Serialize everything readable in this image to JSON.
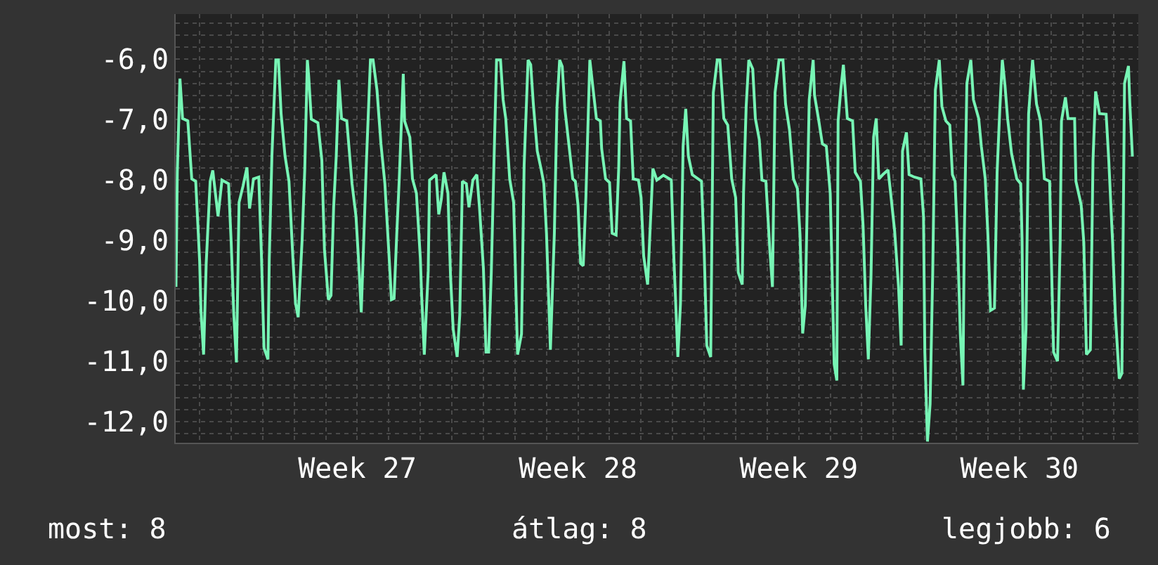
{
  "chart_data": {
    "type": "line",
    "x": [
      "--06-30T06:00",
      "--06-30T07:00",
      "--06-30T09:00",
      "--06-30T11:00",
      "--06-30T15:00",
      "--06-30T18:00",
      "--06-30T21:00",
      "--07-01T00:00",
      "--07-01T01:00",
      "--07-01T03:00",
      "--07-01T05:00",
      "--07-01T08:00",
      "--07-01T10:00",
      "--07-01T14:00",
      "--07-01T17:00",
      "--07-01T22:00",
      "--07-02T00:00",
      "--07-02T02:00",
      "--07-02T04:00",
      "--07-02T06:00",
      "--07-02T09:00",
      "--07-02T12:00",
      "--07-02T14:00",
      "--07-02T17:00",
      "--07-02T21:00",
      "--07-02T23:00",
      "--07-03T01:00",
      "--07-03T04:00",
      "--07-03T05:00",
      "--07-03T07:00",
      "--07-03T10:00",
      "--07-03T12:00",
      "--07-03T14:00",
      "--07-03T17:00",
      "--07-03T20:00",
      "--07-03T23:00",
      "--07-04T01:00",
      "--07-04T03:00",
      "--07-04T06:00",
      "--07-04T08:00",
      "--07-04T10:00",
      "--07-04T11:00",
      "--07-04T13:00",
      "--07-04T18:00",
      "--07-04T21:00",
      "--07-04T23:00",
      "--07-05T02:00",
      "--07-05T04:00",
      "--07-05T06:00",
      "--07-05T08:00",
      "--07-05T10:00",
      "--07-05T12:00",
      "--07-05T16:00",
      "--07-05T20:00",
      "--07-05T23:00",
      "--07-06T01:00",
      "--07-06T03:00",
      "--07-06T07:00",
      "--07-06T10:00",
      "--07-06T12:00",
      "--07-06T15:00",
      "--07-06T18:00",
      "--07-06T21:00",
      "--07-07T00:00",
      "--07-07T02:00",
      "--07-07T04:00",
      "--07-07T06:00",
      "--07-07T08:00",
      "--07-07T11:00",
      "--07-07T12:00",
      "--07-07T16:00",
      "--07-07T18:00",
      "--07-07T21:00",
      "--07-08T00:00",
      "--07-08T01:00",
      "--07-08T03:00",
      "--07-08T06:00",
      "--07-08T07:00",
      "--07-08T12:00",
      "--07-08T14:00",
      "--07-08T16:00",
      "--07-08T18:00",
      "--07-08T21:00",
      "--07-08T23:00",
      "--07-09T01:00",
      "--07-09T04:00",
      "--07-09T06:00",
      "--07-09T08:00",
      "--07-09T11:00",
      "--07-09T13:00",
      "--07-09T16:00",
      "--07-09T19:00",
      "--07-09T21:00",
      "--07-10T00:00",
      "--07-10T02:00",
      "--07-10T04:00",
      "--07-10T06:00",
      "--07-10T08:00",
      "--07-10T10:00",
      "--07-10T13:00",
      "--07-10T15:00",
      "--07-10T17:00",
      "--07-10T20:00",
      "--07-10T23:00",
      "--07-11T00:00",
      "--07-11T02:00",
      "--07-11T05:00",
      "--07-11T07:00",
      "--07-11T10:00",
      "--07-11T12:00",
      "--07-11T14:00",
      "--07-11T17:00",
      "--07-11T20:00",
      "--07-11T22:00",
      "--07-12T00:00",
      "--07-12T03:00",
      "--07-12T06:00",
      "--07-12T08:00",
      "--07-12T10:00",
      "--07-12T12:00",
      "--07-12T14:00",
      "--07-12T17:00",
      "--07-12T20:00",
      "--07-12T22:00",
      "--07-13T00:00",
      "--07-13T02:00",
      "--07-13T04:00",
      "--07-13T06:00",
      "--07-13T09:00",
      "--07-13T11:00",
      "--07-13T14:00",
      "--07-13T17:00",
      "--07-13T18:00",
      "--07-13T21:00",
      "--07-14T00:00",
      "--07-14T02:00",
      "--07-14T05:00",
      "--07-14T07:00",
      "--07-14T08:00",
      "--07-14T11:00",
      "--07-14T13:00",
      "--07-14T16:00",
      "--07-14T18:00",
      "--07-14T22:00",
      "--07-15T00:00",
      "--07-15T02:00",
      "--07-15T05:00",
      "--07-15T07:00",
      "--07-15T09:00",
      "--07-15T12:00",
      "--07-15T17:00",
      "--07-15T23:00",
      "--07-16T01:00",
      "--07-16T04:00",
      "--07-16T06:00",
      "--07-16T08:00",
      "--07-16T10:00",
      "--07-16T12:00",
      "--07-16T15:00",
      "--07-16T22:00",
      "--07-17T00:00",
      "--07-17T02:00",
      "--07-17T05:00",
      "--07-17T07:00",
      "--07-17T10:00",
      "--07-17T12:00",
      "--07-17T15:00",
      "--07-17T18:00",
      "--07-17T21:00",
      "--07-18T00:00",
      "--07-18T02:00",
      "--07-18T05:00",
      "--07-18T06:00",
      "--07-18T08:00",
      "--07-18T10:00",
      "--07-18T13:00",
      "--07-18T15:00",
      "--07-18T18:00",
      "--07-18T20:00",
      "--07-18T23:00",
      "--07-19T02:00",
      "--07-19T04:00",
      "--07-19T06:00",
      "--07-19T09:00",
      "--07-19T12:00",
      "--07-19T14:00",
      "--07-19T17:00",
      "--07-19T20:00",
      "--07-19T23:00",
      "--07-20T01:00",
      "--07-20T03:00",
      "--07-20T05:00",
      "--07-20T08:00",
      "--07-20T11:00",
      "--07-20T12:00",
      "--07-20T15:00",
      "--07-20T18:00",
      "--07-20T21:00",
      "--07-21T00:00",
      "--07-21T03:00",
      "--07-21T05:00",
      "--07-21T06:00",
      "--07-21T08:00",
      "--07-21T10:00",
      "--07-21T13:00",
      "--07-21T17:00",
      "--07-21T19:00",
      "--07-21T23:00",
      "--07-22T01:00",
      "--07-22T03:00",
      "--07-22T05:00",
      "--07-22T07:00",
      "--07-22T09:00",
      "--07-22T11:00",
      "--07-22T13:00",
      "--07-22T16:00",
      "--07-22T20:00",
      "--07-22T22:00",
      "--07-23T01:00",
      "--07-23T04:00",
      "--07-23T06:00",
      "--07-23T07:00",
      "--07-23T10:00",
      "--07-23T12:00",
      "--07-23T16:00",
      "--07-23T21:00",
      "--07-23T23:00",
      "--07-24T00:00",
      "--07-24T02:00",
      "--07-24T04:00",
      "--07-24T06:00",
      "--07-24T08:00",
      "--07-24T11:00",
      "--07-24T13:00",
      "--07-24T16:00",
      "--07-24T19:00",
      "--07-24T21:00",
      "--07-24T23:00",
      "--07-25T01:00",
      "--07-25T03:00",
      "--07-25T05:00",
      "--07-25T06:00",
      "--07-25T08:00",
      "--07-25T11:00",
      "--07-25T13:00",
      "--07-25T17:00",
      "--07-25T19:00",
      "--07-25T22:00",
      "--07-26T00:00",
      "--07-26T02:00",
      "--07-26T05:00",
      "--07-26T07:00",
      "--07-26T09:00",
      "--07-26T11:00",
      "--07-26T13:00",
      "--07-26T15:00",
      "--07-26T18:00",
      "--07-26T22:00",
      "--07-27T01:00",
      "--07-27T02:00",
      "--07-27T03:00",
      "--07-27T05:00",
      "--07-27T07:00",
      "--07-27T10:00",
      "--07-27T13:00",
      "--07-27T16:00",
      "--07-27T19:00",
      "--07-27T23:00",
      "--07-28T00:00",
      "--07-28T02:00",
      "--07-28T05:00",
      "--07-28T07:00",
      "--07-28T08:00",
      "--07-28T11:00",
      "--07-28T13:00",
      "--07-28T18:00",
      "--07-28T19:00",
      "--07-28T23:00",
      "--07-29T01:00",
      "--07-29T03:00",
      "--07-29T06:00",
      "--07-29T08:00",
      "--07-29T10:00",
      "--07-29T13:00",
      "--07-29T18:00",
      "--07-29T20:00",
      "--07-29T23:00",
      "--07-30T01:00",
      "--07-30T04:00",
      "--07-30T06:00",
      "--07-30T08:00",
      "--07-30T11:00",
      "--07-30T12:00",
      "--07-30T14:00"
    ],
    "series": [
      {
        "color": "#77f5b5",
        "values": [
          -9.77,
          -7.87,
          -6.32,
          -6.98,
          -7.02,
          -7.98,
          -8.02,
          -9.34,
          -10.16,
          -10.89,
          -9.38,
          -8.02,
          -7.84,
          -8.6,
          -8.0,
          -8.06,
          -9.03,
          -10.23,
          -11.02,
          -8.37,
          -8.1,
          -7.79,
          -8.47,
          -7.98,
          -7.95,
          -9.22,
          -10.78,
          -10.97,
          -9.3,
          -7.6,
          -6.01,
          -6.01,
          -6.9,
          -7.6,
          -8.02,
          -9.3,
          -10.04,
          -10.27,
          -8.99,
          -7.83,
          -6.01,
          -6.28,
          -6.99,
          -7.05,
          -7.67,
          -9.15,
          -9.98,
          -9.91,
          -8.45,
          -7.6,
          -6.34,
          -6.98,
          -7.02,
          -8.06,
          -8.6,
          -9.34,
          -10.19,
          -7.67,
          -6.01,
          -6.01,
          -6.51,
          -7.4,
          -8.06,
          -9.19,
          -9.98,
          -9.96,
          -8.91,
          -7.95,
          -6.24,
          -7.02,
          -7.29,
          -7.98,
          -8.22,
          -9.3,
          -9.92,
          -10.89,
          -9.5,
          -8.0,
          -7.91,
          -8.57,
          -8.31,
          -7.87,
          -8.22,
          -9.61,
          -10.47,
          -10.93,
          -10.23,
          -8.02,
          -8.06,
          -8.45,
          -8.0,
          -7.91,
          -8.45,
          -9.46,
          -10.85,
          -10.85,
          -9.53,
          -7.75,
          -6.01,
          -6.01,
          -6.67,
          -6.98,
          -7.98,
          -8.37,
          -9.19,
          -10.89,
          -10.55,
          -7.75,
          -6.01,
          -6.09,
          -6.74,
          -7.52,
          -7.83,
          -8.06,
          -8.88,
          -10.81,
          -8.88,
          -6.78,
          -6.01,
          -6.12,
          -6.82,
          -7.4,
          -7.98,
          -8.02,
          -8.41,
          -9.38,
          -9.42,
          -8.29,
          -6.01,
          -6.4,
          -6.98,
          -7.02,
          -7.48,
          -7.98,
          -8.04,
          -8.88,
          -8.91,
          -7.79,
          -6.71,
          -6.03,
          -6.98,
          -7.02,
          -7.98,
          -8.0,
          -8.29,
          -9.26,
          -9.73,
          -8.76,
          -7.81,
          -8.0,
          -7.92,
          -8.0,
          -9.3,
          -10.93,
          -10.04,
          -7.44,
          -6.82,
          -7.6,
          -7.91,
          -8.02,
          -9.15,
          -10.74,
          -10.93,
          -6.55,
          -6.01,
          -6.01,
          -6.98,
          -7.09,
          -7.98,
          -8.29,
          -9.53,
          -9.73,
          -8.22,
          -6.78,
          -6.01,
          -6.16,
          -6.98,
          -7.33,
          -8.0,
          -8.02,
          -9.15,
          -9.77,
          -6.55,
          -6.01,
          -6.01,
          -6.74,
          -7.17,
          -7.98,
          -8.14,
          -8.91,
          -10.54,
          -10.08,
          -6.67,
          -6.01,
          -6.59,
          -6.98,
          -7.4,
          -7.44,
          -8.22,
          -11.05,
          -11.32,
          -7.02,
          -6.51,
          -6.09,
          -6.98,
          -7.02,
          -7.87,
          -8.02,
          -8.76,
          -10.08,
          -10.97,
          -9.61,
          -7.29,
          -6.98,
          -7.98,
          -7.91,
          -7.83,
          -8.22,
          -8.84,
          -9.77,
          -10.74,
          -7.52,
          -7.21,
          -7.91,
          -7.95,
          -7.98,
          -8.6,
          -10.85,
          -12.33,
          -11.71,
          -9.53,
          -6.51,
          -6.01,
          -6.78,
          -7.02,
          -7.09,
          -7.91,
          -8.02,
          -9.07,
          -10.54,
          -11.4,
          -8.99,
          -6.4,
          -6.01,
          -6.67,
          -6.98,
          -7.44,
          -7.98,
          -8.91,
          -10.16,
          -10.12,
          -7.87,
          -6.86,
          -6.01,
          -6.43,
          -6.98,
          -7.56,
          -7.98,
          -8.06,
          -8.99,
          -11.47,
          -10.47,
          -6.9,
          -6.01,
          -6.74,
          -7.02,
          -7.98,
          -8.02,
          -9.03,
          -10.85,
          -11.0,
          -9.03,
          -7.02,
          -6.63,
          -6.98,
          -6.98,
          -8.02,
          -8.41,
          -9.03,
          -10.89,
          -10.81,
          -7.67,
          -6.53,
          -6.9,
          -6.91,
          -7.67,
          -9.07,
          -10.23,
          -11.29,
          -11.2,
          -6.4,
          -6.11,
          -6.71,
          -7.61
        ]
      }
    ],
    "xlim": [
      "--06-30T05:45",
      "--07-30T18:30"
    ],
    "xticks": [
      {
        "value": "--07-01",
        "label": null
      },
      {
        "value": "--07-02",
        "label": null
      },
      {
        "value": "--07-03",
        "label": null
      },
      {
        "value": "--07-04",
        "label": null
      },
      {
        "value": "--07-05",
        "label": null
      },
      {
        "value": "--07-06",
        "label": "Week 27"
      },
      {
        "value": "--07-07",
        "label": null
      },
      {
        "value": "--07-08",
        "label": null
      },
      {
        "value": "--07-09",
        "label": null
      },
      {
        "value": "--07-10",
        "label": null
      },
      {
        "value": "--07-11",
        "label": null
      },
      {
        "value": "--07-12",
        "label": null
      },
      {
        "value": "--07-13",
        "label": "Week 28"
      },
      {
        "value": "--07-14",
        "label": null
      },
      {
        "value": "--07-15",
        "label": null
      },
      {
        "value": "--07-16",
        "label": null
      },
      {
        "value": "--07-17",
        "label": null
      },
      {
        "value": "--07-18",
        "label": null
      },
      {
        "value": "--07-19",
        "label": null
      },
      {
        "value": "--07-20",
        "label": "Week 29"
      },
      {
        "value": "--07-21",
        "label": null
      },
      {
        "value": "--07-22",
        "label": null
      },
      {
        "value": "--07-23",
        "label": null
      },
      {
        "value": "--07-24",
        "label": null
      },
      {
        "value": "--07-25",
        "label": null
      },
      {
        "value": "--07-26",
        "label": null
      },
      {
        "value": "--07-27",
        "label": "Week 30"
      },
      {
        "value": "--07-28",
        "label": null
      },
      {
        "value": "--07-29",
        "label": null
      },
      {
        "value": "--07-30",
        "label": null
      }
    ],
    "ylim": [
      -12.35,
      -5.25
    ],
    "yticks": [
      {
        "value": -12.2,
        "label": null
      },
      {
        "value": -12,
        "label": "-12,0"
      },
      {
        "value": -11.8,
        "label": null
      },
      {
        "value": -11.6,
        "label": null
      },
      {
        "value": -11.4,
        "label": null
      },
      {
        "value": -11.2,
        "label": null
      },
      {
        "value": -11,
        "label": "-11,0"
      },
      {
        "value": -10.8,
        "label": null
      },
      {
        "value": -10.6,
        "label": null
      },
      {
        "value": -10.4,
        "label": null
      },
      {
        "value": -10.2,
        "label": null
      },
      {
        "value": -10,
        "label": "-10,0"
      },
      {
        "value": -9.8,
        "label": null
      },
      {
        "value": -9.6,
        "label": null
      },
      {
        "value": -9.4,
        "label": null
      },
      {
        "value": -9.2,
        "label": null
      },
      {
        "value": -9,
        "label": "-9,0"
      },
      {
        "value": -8.8,
        "label": null
      },
      {
        "value": -8.6,
        "label": null
      },
      {
        "value": -8.4,
        "label": null
      },
      {
        "value": -8.2,
        "label": null
      },
      {
        "value": -8,
        "label": "-8,0"
      },
      {
        "value": -7.8,
        "label": null
      },
      {
        "value": -7.6,
        "label": null
      },
      {
        "value": -7.4,
        "label": null
      },
      {
        "value": -7.2,
        "label": null
      },
      {
        "value": -7,
        "label": "-7,0"
      },
      {
        "value": -6.8,
        "label": null
      },
      {
        "value": -6.6,
        "label": null
      },
      {
        "value": -6.4,
        "label": null
      },
      {
        "value": -6.2,
        "label": null
      },
      {
        "value": -6,
        "label": "-6,0"
      },
      {
        "value": -5.8,
        "label": null
      },
      {
        "value": -5.6,
        "label": null
      },
      {
        "value": -5.4,
        "label": null
      }
    ],
    "grid": true,
    "marker": "none",
    "line_style": "solid",
    "annotations": [
      "most: 8",
      "átlag: 8",
      "legjobb: 6"
    ]
  }
}
